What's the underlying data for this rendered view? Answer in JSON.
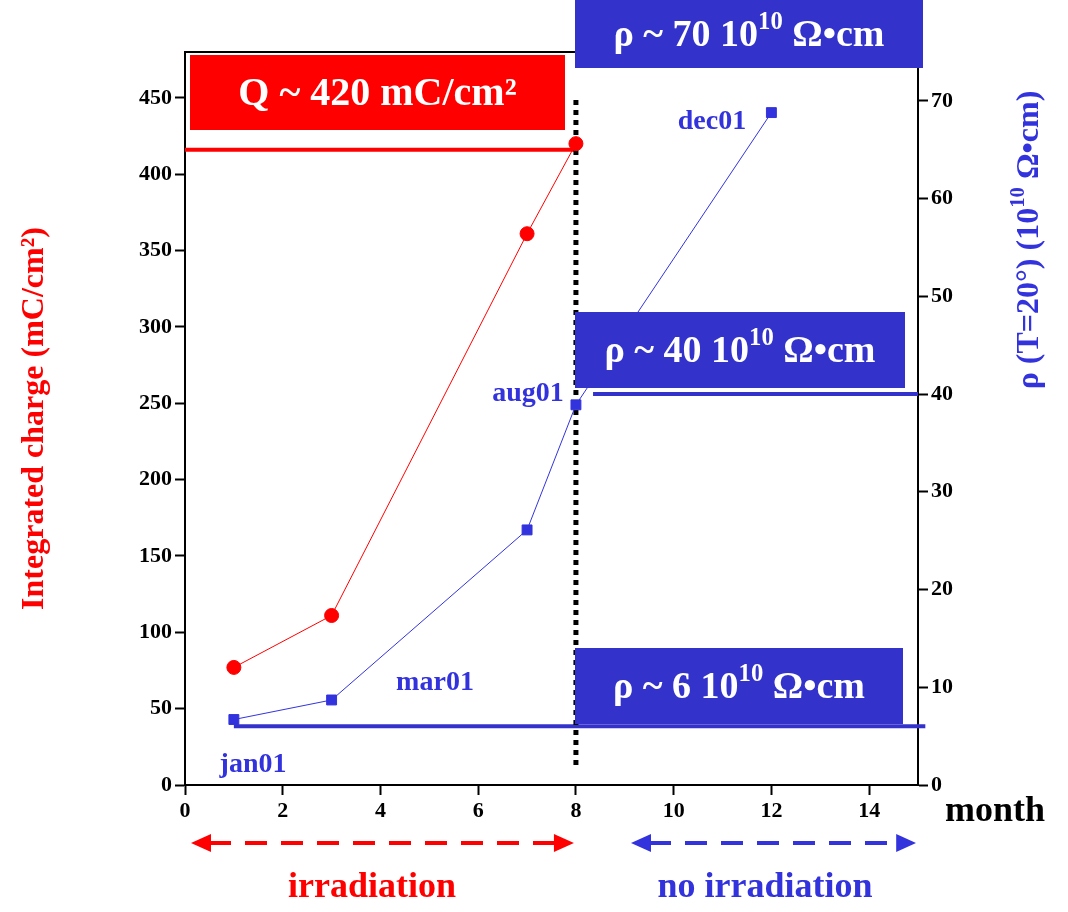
{
  "chart_data": {
    "type": "line",
    "xlabel": "month",
    "ylabel": "Integrated charge (mC/cm²)",
    "y2label": "ρ (T=20°) (10$^{10}$ Ω•cm)",
    "xlim": [
      0,
      15
    ],
    "xticks": [
      0,
      2,
      4,
      6,
      8,
      10,
      12,
      14
    ],
    "ylim": [
      0,
      480
    ],
    "yticks": [
      0,
      50,
      100,
      150,
      200,
      250,
      300,
      350,
      400,
      450
    ],
    "y2lim": [
      0,
      75
    ],
    "y2ticks": [
      0,
      10,
      20,
      30,
      40,
      50,
      60,
      70
    ],
    "series": [
      {
        "x": [
          1,
          3,
          7,
          8
        ],
        "values": [
          77,
          111,
          361,
          420
        ],
        "color": "#ff0000",
        "axis": "y",
        "marker": "circle"
      },
      {
        "x": [
          1,
          3,
          7,
          8,
          12
        ],
        "values": [
          6.7,
          8.7,
          26.1,
          38.9,
          68.8
        ],
        "color": "#3333dd",
        "axis": "y2",
        "marker": "square"
      }
    ],
    "ref_lines": [
      {
        "axis": "y",
        "value": 416,
        "label": "Q ~ 420 mC/cm²",
        "color": "#ff0000"
      },
      {
        "axis": "y2",
        "value": 40,
        "label": "ρ ~ 40 10$^{10}$ Ω•cm",
        "color": "#3333cc"
      },
      {
        "axis": "y2",
        "value": 6,
        "label": "ρ ~ 6 10$^{10}$ Ω•cm",
        "color": "#3333cc"
      },
      {
        "axis": "x",
        "value": 8,
        "color": "#000000",
        "line_style": "dotted"
      }
    ],
    "annotations": [
      "ρ ~ 70 10$^{10}$ Ω•cm",
      "jan01",
      "mar01",
      "aug01",
      "dec01",
      "irradiation",
      "no irradiation"
    ],
    "grid": false,
    "legend": false
  }
}
